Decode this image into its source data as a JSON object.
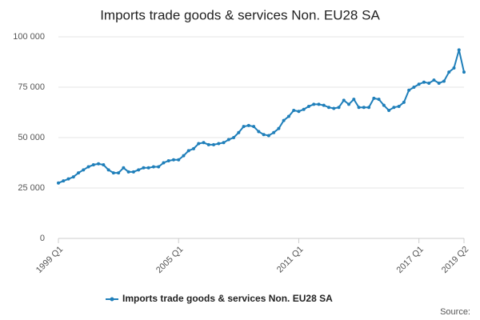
{
  "chart_data": {
    "type": "line",
    "title": "Imports trade goods & services Non. EU28 SA",
    "source": "Source:",
    "categories": [
      "1999 Q1",
      null,
      null,
      null,
      null,
      null,
      null,
      null,
      null,
      null,
      null,
      null,
      null,
      null,
      null,
      null,
      null,
      null,
      null,
      null,
      null,
      null,
      null,
      null,
      "2005 Q1",
      null,
      null,
      null,
      null,
      null,
      null,
      null,
      null,
      null,
      null,
      null,
      null,
      null,
      null,
      null,
      null,
      null,
      null,
      null,
      null,
      null,
      null,
      null,
      "2011 Q1",
      null,
      null,
      null,
      null,
      null,
      null,
      null,
      null,
      null,
      null,
      null,
      null,
      null,
      null,
      null,
      null,
      null,
      null,
      null,
      null,
      null,
      null,
      null,
      "2017 Q1",
      null,
      null,
      null,
      null,
      null,
      null,
      null,
      null,
      "2019 Q2"
    ],
    "series": [
      {
        "name": "Imports trade goods & services Non. EU28 SA",
        "color": "#1f7fba",
        "values": [
          27500,
          28500,
          29500,
          30500,
          32500,
          34000,
          35500,
          36500,
          37000,
          36500,
          34000,
          32500,
          32500,
          35000,
          33000,
          33000,
          34000,
          35000,
          35000,
          35500,
          35500,
          37500,
          38500,
          39000,
          39000,
          41000,
          43500,
          44500,
          47000,
          47500,
          46500,
          46500,
          47000,
          47500,
          49000,
          50000,
          52500,
          55500,
          56000,
          55500,
          53000,
          51500,
          51000,
          52500,
          54500,
          58500,
          60500,
          63500,
          63000,
          64000,
          65500,
          66500,
          66500,
          66000,
          65000,
          64500,
          65000,
          68500,
          66500,
          69000,
          65000,
          65000,
          65000,
          69500,
          69000,
          66000,
          63500,
          65000,
          65500,
          67500,
          73500,
          75000,
          76500,
          77500,
          77000,
          78500,
          77000,
          78000,
          82500,
          84500,
          93500,
          82500
        ]
      }
    ],
    "ylim": [
      0,
      100000
    ],
    "yticks": [
      0,
      {
        "value": 25000,
        "label": "25 000"
      },
      {
        "value": 50000,
        "label": "50 000"
      },
      {
        "value": 75000,
        "label": "75 000"
      },
      {
        "value": 100000,
        "label": "100 000"
      }
    ],
    "grid": true
  }
}
